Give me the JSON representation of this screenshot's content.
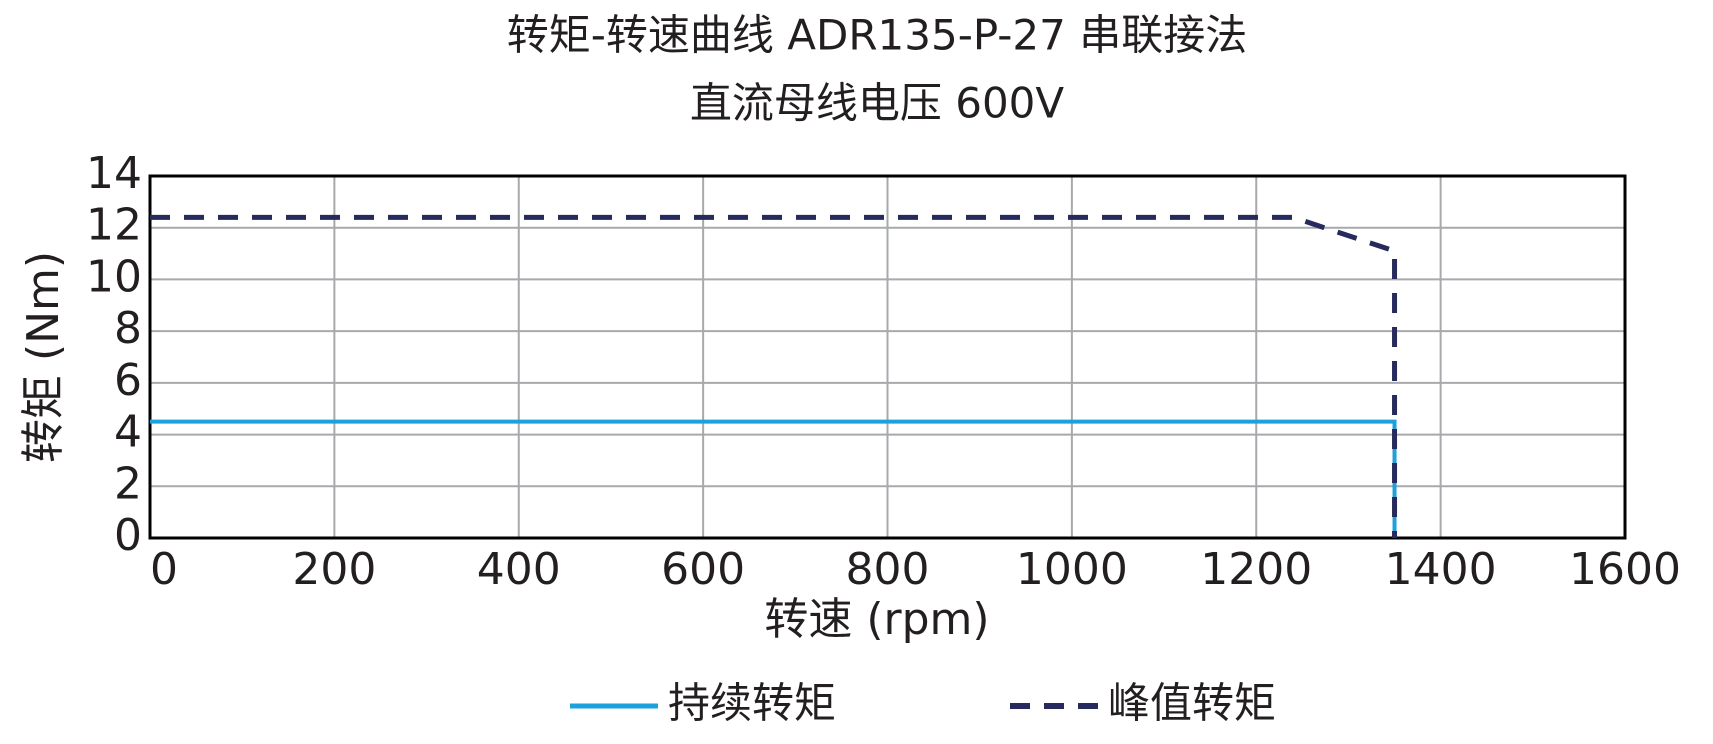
{
  "chart_data": {
    "type": "line",
    "title": "转矩-转速曲线 ADR135-P-27 串联接法",
    "subtitle": "直流母线电压 600V",
    "x_label": "转速 (rpm)",
    "y_label": "转矩 (Nm)",
    "xlim": [
      0,
      1600
    ],
    "xticks": [
      0,
      200,
      400,
      600,
      800,
      1000,
      1200,
      1400,
      1600
    ],
    "ylim": [
      0,
      14
    ],
    "yticks": [
      0,
      2,
      4,
      6,
      8,
      10,
      12,
      14
    ],
    "grid": true,
    "legend": "bottom",
    "series": [
      {
        "name": "持续转矩",
        "color": "#1ba1db",
        "style": "solid",
        "x": [
          0,
          1350,
          1350
        ],
        "values": [
          4.5,
          4.5,
          0
        ]
      },
      {
        "name": "峰值转矩",
        "color": "#262a5c",
        "style": "dashed",
        "x": [
          0,
          1240,
          1350,
          1350
        ],
        "values": [
          12.4,
          12.4,
          11.1,
          0
        ]
      }
    ]
  }
}
